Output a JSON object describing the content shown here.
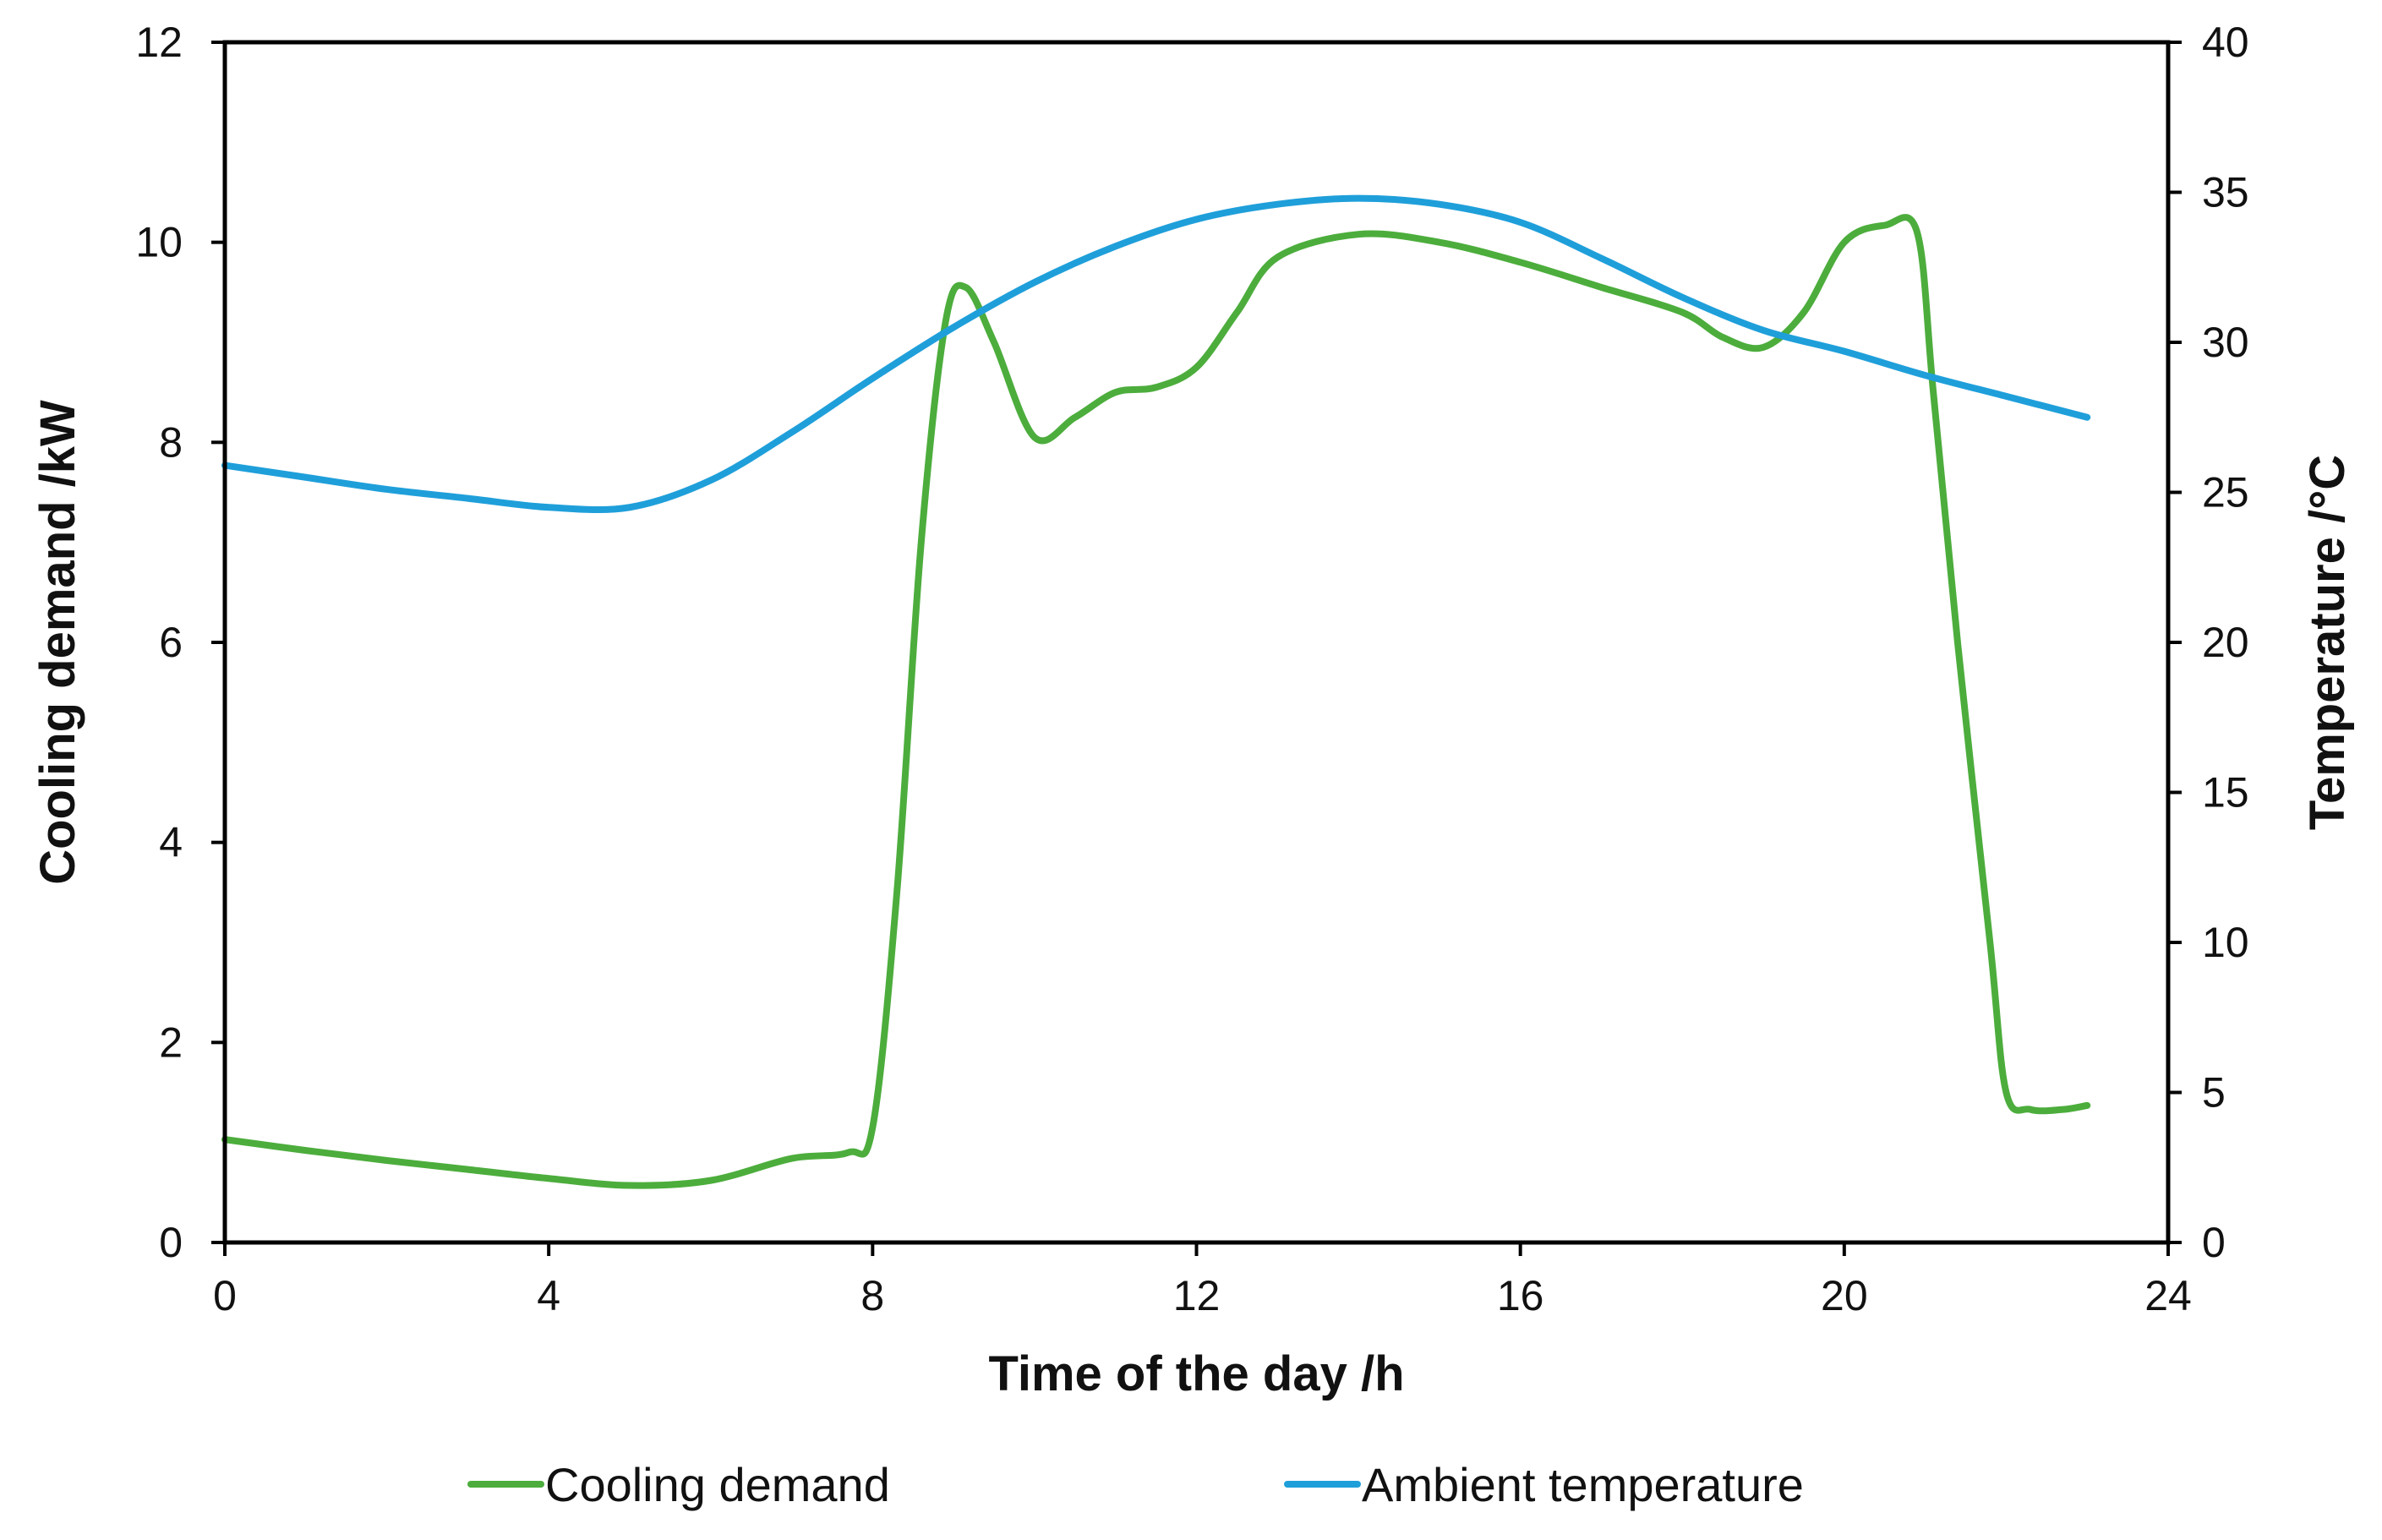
{
  "chart_data": {
    "type": "line",
    "title": "",
    "xlabel": "Time of the day /h",
    "ylabel": "Cooling demand /kW",
    "y2label": "Temperature /°C",
    "xlim": [
      0,
      24
    ],
    "ylim": [
      0,
      12
    ],
    "y2lim": [
      0,
      40
    ],
    "xticks": [
      0,
      4,
      8,
      12,
      16,
      20,
      24
    ],
    "yticks": [
      0,
      2,
      4,
      6,
      8,
      10,
      12
    ],
    "y2ticks": [
      0,
      5,
      10,
      15,
      20,
      25,
      30,
      35,
      40
    ],
    "grid": false,
    "legend_position": "bottom",
    "series": [
      {
        "name": "Cooling demand",
        "axis": "left",
        "color": "#4cad3c",
        "x": [
          0,
          1,
          2,
          3,
          4,
          5,
          6,
          7,
          7.7,
          8,
          8.3,
          8.6,
          8.9,
          9.15,
          9.5,
          10,
          10.5,
          11,
          11.5,
          12,
          12.5,
          13,
          14,
          15,
          16,
          17,
          18,
          18.5,
          19,
          19.5,
          20,
          20.5,
          20.9,
          21.1,
          21.4,
          21.8,
          22,
          22.3,
          22.7,
          23
        ],
        "values": [
          1.03,
          0.92,
          0.82,
          0.73,
          0.64,
          0.57,
          0.62,
          0.84,
          0.9,
          1.15,
          3.5,
          7.0,
          9.2,
          9.55,
          9.0,
          8.05,
          8.25,
          8.5,
          8.55,
          8.75,
          9.3,
          9.85,
          10.08,
          10.0,
          9.8,
          9.55,
          9.3,
          9.05,
          8.95,
          9.3,
          10.0,
          10.17,
          10.1,
          8.5,
          6.0,
          3.0,
          1.5,
          1.33,
          1.33,
          1.37
        ]
      },
      {
        "name": "Ambient temperature",
        "axis": "right",
        "color": "#1f9fda",
        "x": [
          0,
          1,
          2,
          3,
          4,
          5,
          6,
          7,
          8,
          9,
          10,
          11,
          12,
          13,
          14,
          15,
          16,
          17,
          18,
          19,
          20,
          21,
          22,
          23
        ],
        "values": [
          25.9,
          25.5,
          25.1,
          24.8,
          24.5,
          24.5,
          25.4,
          27.0,
          28.8,
          30.5,
          32.0,
          33.2,
          34.1,
          34.6,
          34.8,
          34.6,
          34.0,
          32.8,
          31.5,
          30.4,
          29.7,
          28.9,
          28.2,
          27.5
        ]
      }
    ]
  }
}
